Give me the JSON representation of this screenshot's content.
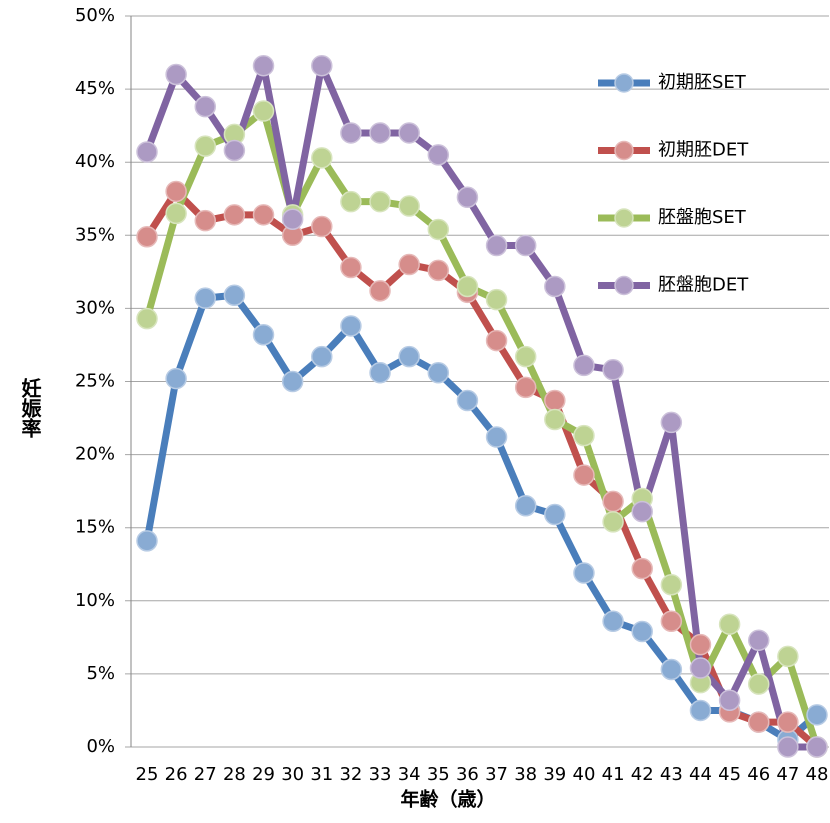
{
  "chart_data": {
    "type": "line",
    "x_label": "年齢（歳）",
    "y_label": "妊娠率",
    "categories": [
      "25",
      "26",
      "27",
      "28",
      "29",
      "30",
      "31",
      "32",
      "33",
      "34",
      "35",
      "36",
      "37",
      "38",
      "39",
      "40",
      "41",
      "42",
      "43",
      "44",
      "45",
      "46",
      "47",
      "48"
    ],
    "series": [
      {
        "name": "初期胚SET",
        "color": "#4a7ebb",
        "values": [
          14.1,
          25.2,
          30.7,
          30.9,
          28.2,
          25.0,
          26.7,
          28.8,
          25.6,
          26.7,
          25.6,
          23.7,
          21.2,
          16.5,
          15.9,
          11.9,
          8.6,
          7.9,
          5.3,
          2.5,
          2.5,
          1.7,
          0.5,
          2.2
        ]
      },
      {
        "name": "初期胚DET",
        "color": "#c0504d",
        "values": [
          34.9,
          38.0,
          36.0,
          36.4,
          36.4,
          35.0,
          35.6,
          32.8,
          31.2,
          33.0,
          32.6,
          31.1,
          27.8,
          24.6,
          23.7,
          18.6,
          16.8,
          12.2,
          8.6,
          7.0,
          2.4,
          1.7,
          1.7,
          0
        ]
      },
      {
        "name": "胚盤胞SET",
        "color": "#9bbb59",
        "values": [
          29.3,
          36.5,
          41.1,
          41.9,
          43.5,
          36.4,
          40.3,
          37.3,
          37.3,
          37.0,
          35.4,
          31.5,
          30.6,
          26.7,
          22.4,
          21.3,
          15.4,
          17.0,
          11.1,
          4.4,
          8.4,
          4.3,
          6.2,
          0
        ]
      },
      {
        "name": "胚盤胞DET",
        "color": "#8064a2",
        "values": [
          40.7,
          46.0,
          43.8,
          40.8,
          46.6,
          36.1,
          46.6,
          42.0,
          42.0,
          42.0,
          40.5,
          37.6,
          34.3,
          34.3,
          31.5,
          26.1,
          25.8,
          16.1,
          22.2,
          5.4,
          3.2,
          7.3,
          0,
          0
        ]
      }
    ],
    "ylim": [
      0,
      50
    ],
    "yticks": [
      {
        "value": 0,
        "label": "0%"
      },
      {
        "value": 5,
        "label": "5%"
      },
      {
        "value": 10,
        "label": "10%"
      },
      {
        "value": 15,
        "label": "15%"
      },
      {
        "value": 20,
        "label": "20%"
      },
      {
        "value": 25,
        "label": "25%"
      },
      {
        "value": 30,
        "label": "30%"
      },
      {
        "value": 35,
        "label": "35%"
      },
      {
        "value": 40,
        "label": "40%"
      },
      {
        "value": 45,
        "label": "45%"
      },
      {
        "value": 50,
        "label": "50%"
      }
    ],
    "grid": true,
    "legend": "right"
  }
}
